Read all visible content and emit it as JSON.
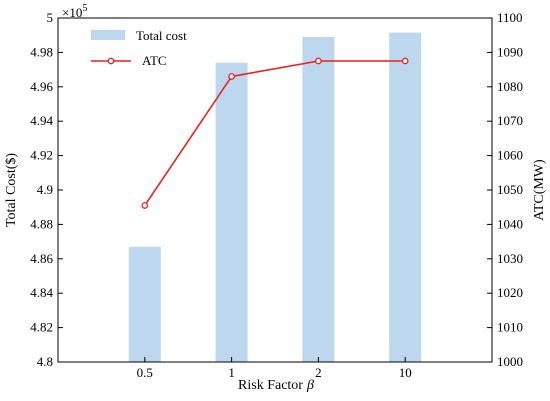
{
  "chart_data": {
    "type": "bar",
    "categories": [
      "0.5",
      "1",
      "2",
      "10"
    ],
    "xlabel": "Risk Factor",
    "xlabel_symbol": "β",
    "y_left": {
      "label": "Total Cost($)",
      "range": [
        480000,
        500000
      ],
      "ticks": [
        "4.8",
        "4.82",
        "4.84",
        "4.86",
        "4.88",
        "4.9",
        "4.92",
        "4.94",
        "4.96",
        "4.98",
        "5"
      ],
      "exponent_label": "×10",
      "exponent_power": "5"
    },
    "y_right": {
      "label": "ATC(MW)",
      "range": [
        1000,
        1100
      ],
      "ticks": [
        "1000",
        "1010",
        "1020",
        "1030",
        "1040",
        "1050",
        "1060",
        "1070",
        "1080",
        "1090",
        "1100"
      ]
    },
    "series": [
      {
        "name": "Total cost",
        "kind": "bar",
        "axis": "left",
        "color": "#bdd7ee",
        "values": [
          486700,
          497400,
          498900,
          499150
        ]
      },
      {
        "name": "ATC",
        "kind": "line",
        "axis": "right",
        "color": "#e8211b",
        "marker": "open-circle",
        "values": [
          1045.5,
          1083,
          1087.5,
          1087.5
        ]
      }
    ],
    "legend": "top-left",
    "grid": false
  }
}
